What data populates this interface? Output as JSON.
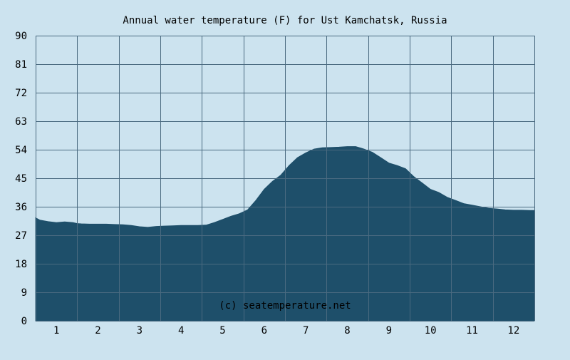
{
  "chart_data": {
    "type": "area",
    "title": "Annual water temperature (F) for Ust Kamchatsk, Russia",
    "watermark": "(c) seatemperature.net",
    "xlabel": "",
    "ylabel": "",
    "xlim": [
      0.5,
      12.5
    ],
    "ylim": [
      0,
      90
    ],
    "x_ticks": [
      "1",
      "2",
      "3",
      "4",
      "5",
      "6",
      "7",
      "8",
      "9",
      "10",
      "11",
      "12"
    ],
    "y_ticks": [
      "0",
      "9",
      "18",
      "27",
      "36",
      "45",
      "54",
      "63",
      "72",
      "81",
      "90"
    ],
    "grid": true,
    "colors": {
      "background": "#cce3ef",
      "fill": "#1e4f6a",
      "grid": "#4a6a80"
    },
    "series": [
      {
        "x": [
          0.5,
          0.6,
          0.8,
          1.0,
          1.2,
          1.4,
          1.5,
          1.6,
          1.8,
          2.0,
          2.2,
          2.4,
          2.6,
          2.8,
          3.0,
          3.2,
          3.4,
          3.6,
          3.8,
          4.0,
          4.2,
          4.4,
          4.6,
          4.8,
          5.0,
          5.2,
          5.4,
          5.6,
          5.8,
          6.0,
          6.2,
          6.4,
          6.6,
          6.8,
          7.0,
          7.2,
          7.4,
          7.6,
          7.8,
          8.0,
          8.2,
          8.4,
          8.6,
          8.8,
          9.0,
          9.2,
          9.4,
          9.6,
          9.8,
          10.0,
          10.2,
          10.4,
          10.6,
          10.8,
          11.0,
          11.2,
          11.4,
          11.6,
          11.8,
          12.0,
          12.2,
          12.4,
          12.5
        ],
        "y": [
          32.5,
          31.8,
          31.3,
          31.0,
          31.2,
          31.0,
          30.7,
          30.6,
          30.5,
          30.5,
          30.5,
          30.4,
          30.3,
          30.1,
          29.7,
          29.5,
          29.8,
          29.9,
          30.0,
          30.1,
          30.1,
          30.1,
          30.2,
          31.0,
          32.0,
          33.0,
          33.8,
          35.0,
          38.0,
          41.5,
          44.0,
          46.0,
          49.0,
          51.5,
          53.0,
          54.2,
          54.6,
          54.7,
          54.8,
          55.0,
          55.0,
          54.2,
          53.2,
          51.5,
          49.8,
          49.0,
          48.0,
          45.5,
          43.5,
          41.5,
          40.5,
          39.0,
          38.0,
          37.0,
          36.5,
          36.0,
          35.5,
          35.3,
          35.0,
          34.9,
          34.9,
          34.8,
          34.8
        ]
      }
    ]
  }
}
